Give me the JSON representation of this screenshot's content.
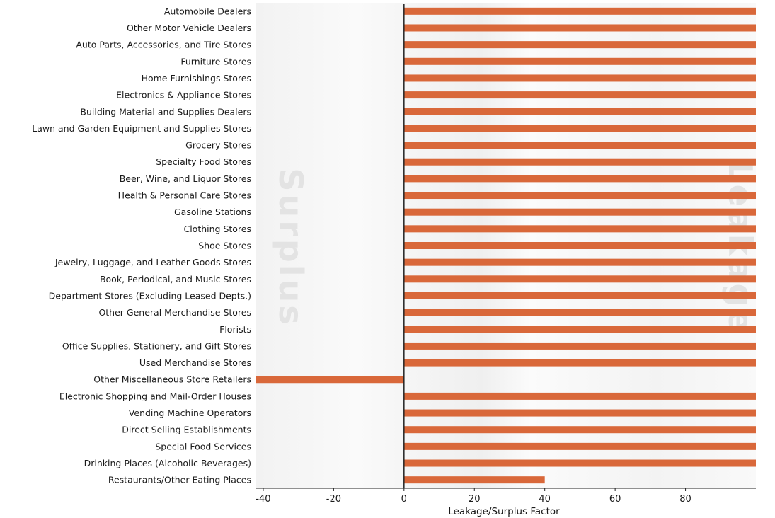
{
  "chart_data": {
    "type": "bar",
    "orientation": "horizontal",
    "xlabel": "Leakage/Surplus Factor",
    "xlim": [
      -42,
      100
    ],
    "xticks": [
      -40,
      -20,
      0,
      20,
      40,
      60,
      80
    ],
    "grid": false,
    "legend": "none",
    "bar_color": "#d9683a",
    "background_text": {
      "left": "Surplus",
      "right": "Leakage"
    },
    "categories": [
      "Automobile Dealers",
      "Other Motor Vehicle Dealers",
      "Auto Parts, Accessories, and Tire Stores",
      "Furniture Stores",
      "Home Furnishings Stores",
      "Electronics & Appliance Stores",
      "Building Material and Supplies Dealers",
      "Lawn and Garden Equipment and Supplies Stores",
      "Grocery Stores",
      "Specialty Food Stores",
      "Beer, Wine, and Liquor Stores",
      "Health & Personal Care Stores",
      "Gasoline Stations",
      "Clothing Stores",
      "Shoe Stores",
      "Jewelry, Luggage, and Leather Goods Stores",
      "Book, Periodical, and Music Stores",
      "Department Stores (Excluding Leased Depts.)",
      "Other General Merchandise Stores",
      "Florists",
      "Office Supplies, Stationery, and Gift Stores",
      "Used Merchandise Stores",
      "Other Miscellaneous Store Retailers",
      "Electronic Shopping and Mail-Order Houses",
      "Vending Machine Operators",
      "Direct Selling Establishments",
      "Special Food Services",
      "Drinking Places (Alcoholic Beverages)",
      "Restaurants/Other Eating Places"
    ],
    "values": [
      100,
      100,
      100,
      100,
      100,
      100,
      100,
      100,
      100,
      100,
      100,
      100,
      100,
      100,
      100,
      100,
      100,
      100,
      100,
      100,
      100,
      100,
      -42,
      100,
      100,
      100,
      100,
      100,
      40
    ]
  }
}
